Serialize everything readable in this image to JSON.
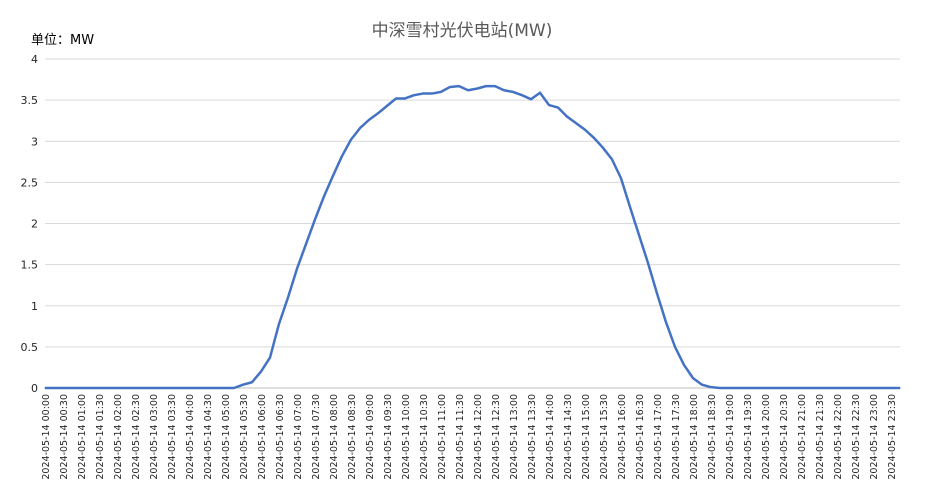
{
  "chart_data": {
    "type": "line",
    "title": "中深雪村光伏电站(MW)",
    "unit_label": "单位：MW",
    "xlabel": "",
    "ylabel": "",
    "ylim": [
      0,
      4
    ],
    "y_ticks": [
      "0",
      "0.5",
      "1",
      "1.5",
      "2",
      "2.5",
      "3",
      "3.5",
      "4"
    ],
    "grid": true,
    "x": [
      "2024-05-14 00:00",
      "2024-05-14 00:15",
      "2024-05-14 00:30",
      "2024-05-14 00:45",
      "2024-05-14 01:00",
      "2024-05-14 01:15",
      "2024-05-14 01:30",
      "2024-05-14 01:45",
      "2024-05-14 02:00",
      "2024-05-14 02:15",
      "2024-05-14 02:30",
      "2024-05-14 02:45",
      "2024-05-14 03:00",
      "2024-05-14 03:15",
      "2024-05-14 03:30",
      "2024-05-14 03:45",
      "2024-05-14 04:00",
      "2024-05-14 04:15",
      "2024-05-14 04:30",
      "2024-05-14 04:45",
      "2024-05-14 05:00",
      "2024-05-14 05:15",
      "2024-05-14 05:30",
      "2024-05-14 05:45",
      "2024-05-14 06:00",
      "2024-05-14 06:15",
      "2024-05-14 06:30",
      "2024-05-14 06:45",
      "2024-05-14 07:00",
      "2024-05-14 07:15",
      "2024-05-14 07:30",
      "2024-05-14 07:45",
      "2024-05-14 08:00",
      "2024-05-14 08:15",
      "2024-05-14 08:30",
      "2024-05-14 08:45",
      "2024-05-14 09:00",
      "2024-05-14 09:15",
      "2024-05-14 09:30",
      "2024-05-14 09:45",
      "2024-05-14 10:00",
      "2024-05-14 10:15",
      "2024-05-14 10:30",
      "2024-05-14 10:45",
      "2024-05-14 11:00",
      "2024-05-14 11:15",
      "2024-05-14 11:30",
      "2024-05-14 11:45",
      "2024-05-14 12:00",
      "2024-05-14 12:15",
      "2024-05-14 12:30",
      "2024-05-14 12:45",
      "2024-05-14 13:00",
      "2024-05-14 13:15",
      "2024-05-14 13:30",
      "2024-05-14 13:45",
      "2024-05-14 14:00",
      "2024-05-14 14:15",
      "2024-05-14 14:30",
      "2024-05-14 14:45",
      "2024-05-14 15:00",
      "2024-05-14 15:15",
      "2024-05-14 15:30",
      "2024-05-14 15:45",
      "2024-05-14 16:00",
      "2024-05-14 16:15",
      "2024-05-14 16:30",
      "2024-05-14 16:45",
      "2024-05-14 17:00",
      "2024-05-14 17:15",
      "2024-05-14 17:30",
      "2024-05-14 17:45",
      "2024-05-14 18:00",
      "2024-05-14 18:15",
      "2024-05-14 18:30",
      "2024-05-14 18:45",
      "2024-05-14 19:00",
      "2024-05-14 19:15",
      "2024-05-14 19:30",
      "2024-05-14 19:45",
      "2024-05-14 20:00",
      "2024-05-14 20:15",
      "2024-05-14 20:30",
      "2024-05-14 20:45",
      "2024-05-14 21:00",
      "2024-05-14 21:15",
      "2024-05-14 21:30",
      "2024-05-14 21:45",
      "2024-05-14 22:00",
      "2024-05-14 22:15",
      "2024-05-14 22:30",
      "2024-05-14 22:45",
      "2024-05-14 23:00",
      "2024-05-14 23:15",
      "2024-05-14 23:30",
      "2024-05-14 23:45"
    ],
    "x_tick_labels": [
      "2024-05-14 00:00",
      "2024-05-14 00:30",
      "2024-05-14 01:00",
      "2024-05-14 01:30",
      "2024-05-14 02:00",
      "2024-05-14 02:30",
      "2024-05-14 03:00",
      "2024-05-14 03:30",
      "2024-05-14 04:00",
      "2024-05-14 04:30",
      "2024-05-14 05:00",
      "2024-05-14 05:30",
      "2024-05-14 06:00",
      "2024-05-14 06:30",
      "2024-05-14 07:00",
      "2024-05-14 07:30",
      "2024-05-14 08:00",
      "2024-05-14 08:30",
      "2024-05-14 09:00",
      "2024-05-14 09:30",
      "2024-05-14 10:00",
      "2024-05-14 10:30",
      "2024-05-14 11:00",
      "2024-05-14 11:30",
      "2024-05-14 12:00",
      "2024-05-14 12:30",
      "2024-05-14 13:00",
      "2024-05-14 13:30",
      "2024-05-14 14:00",
      "2024-05-14 14:30",
      "2024-05-14 15:00",
      "2024-05-14 15:30",
      "2024-05-14 16:00",
      "2024-05-14 16:30",
      "2024-05-14 17:00",
      "2024-05-14 17:30",
      "2024-05-14 18:00",
      "2024-05-14 18:30",
      "2024-05-14 19:00",
      "2024-05-14 19:30",
      "2024-05-14 20:00",
      "2024-05-14 20:30",
      "2024-05-14 21:00",
      "2024-05-14 21:30",
      "2024-05-14 22:00",
      "2024-05-14 22:30",
      "2024-05-14 23:00",
      "2024-05-14 23:30"
    ],
    "series": [
      {
        "name": "",
        "color": "#4472c4",
        "values": [
          0,
          0,
          0,
          0,
          0,
          0,
          0,
          0,
          0,
          0,
          0,
          0,
          0,
          0,
          0,
          0,
          0,
          0,
          0,
          0,
          0,
          0,
          0.04,
          0.07,
          0.2,
          0.37,
          0.78,
          1.1,
          1.45,
          1.75,
          2.05,
          2.33,
          2.58,
          2.82,
          3.02,
          3.16,
          3.26,
          3.34,
          3.43,
          3.52,
          3.52,
          3.56,
          3.58,
          3.58,
          3.6,
          3.66,
          3.67,
          3.62,
          3.64,
          3.67,
          3.67,
          3.62,
          3.6,
          3.56,
          3.51,
          3.59,
          3.44,
          3.41,
          3.3,
          3.22,
          3.14,
          3.04,
          2.92,
          2.78,
          2.55,
          2.2,
          1.86,
          1.52,
          1.15,
          0.8,
          0.5,
          0.28,
          0.12,
          0.04,
          0.01,
          0,
          0,
          0,
          0,
          0,
          0,
          0,
          0,
          0,
          0,
          0,
          0,
          0,
          0,
          0,
          0,
          0,
          0,
          0,
          0,
          0
        ]
      }
    ]
  },
  "style": {
    "title_color": "#595959",
    "axis_text_color": "#262626",
    "unit_text_color": "#000000",
    "gridline_color": "#d9d9d9",
    "line_color": "#4472c4"
  }
}
